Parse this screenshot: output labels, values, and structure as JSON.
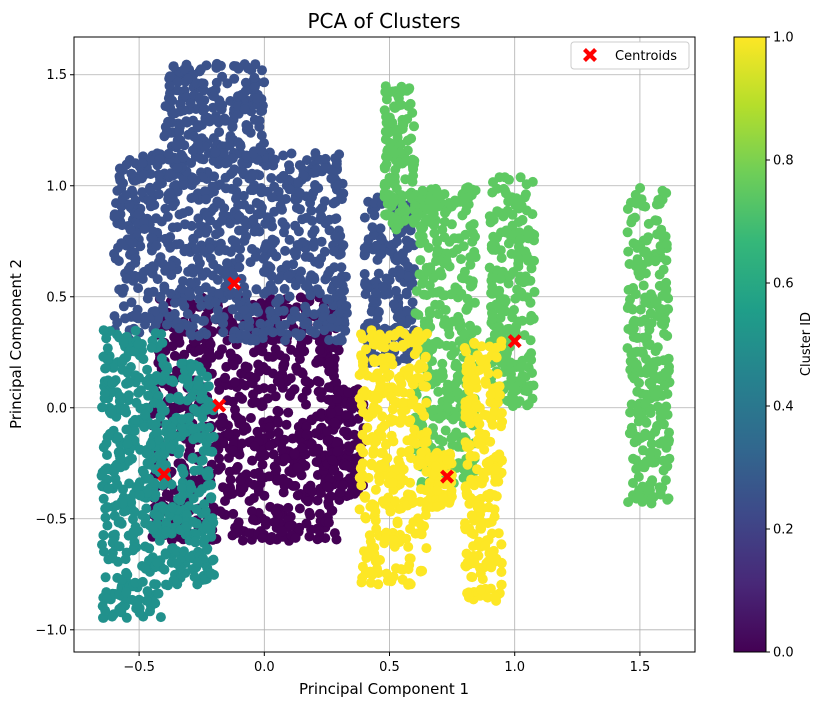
{
  "chart_data": {
    "type": "scatter",
    "title": "PCA of Clusters",
    "xlabel": "Principal Component 1",
    "ylabel": "Principal Component 2",
    "xlim": [
      -0.76,
      1.72
    ],
    "ylim": [
      -1.1,
      1.67
    ],
    "xticks": [
      -0.5,
      0.0,
      0.5,
      1.0,
      1.5
    ],
    "xtick_labels": [
      "−0.5",
      "0.0",
      "0.5",
      "1.0",
      "1.5"
    ],
    "yticks": [
      -1.0,
      -0.5,
      0.0,
      0.5,
      1.0,
      1.5
    ],
    "ytick_labels": [
      "−1.0",
      "−0.5",
      "0.0",
      "0.5",
      "1.0",
      "1.5"
    ],
    "grid": true,
    "legend": {
      "position": "top-right",
      "entries": [
        "Centroids"
      ]
    },
    "colorbar": {
      "label": "Cluster ID",
      "range": [
        0.0,
        1.0
      ],
      "ticks": [
        0.0,
        0.2,
        0.4,
        0.6,
        0.8,
        1.0
      ],
      "tick_labels": [
        "0.0",
        "0.2",
        "0.4",
        "0.6",
        "0.8",
        "1.0"
      ],
      "colormap": [
        "#440154",
        "#482878",
        "#3e4989",
        "#31688e",
        "#26828e",
        "#1f9e89",
        "#35b779",
        "#6ece58",
        "#b5de2b",
        "#fde725"
      ]
    },
    "clusters": [
      {
        "id": 0,
        "color_value": 0.0,
        "color": "#440154",
        "regions": [
          {
            "x": [
              -0.45,
              0.3
            ],
            "y": [
              -0.6,
              0.5
            ]
          },
          {
            "x": [
              0.25,
              0.4
            ],
            "y": [
              -0.4,
              0.1
            ]
          }
        ]
      },
      {
        "id": 1,
        "color_value": 0.25,
        "color": "#3b528b",
        "regions": [
          {
            "x": [
              -0.6,
              0.33
            ],
            "y": [
              0.3,
              1.15
            ]
          },
          {
            "x": [
              -0.4,
              0.0
            ],
            "y": [
              1.1,
              1.55
            ]
          },
          {
            "x": [
              0.4,
              0.6
            ],
            "y": [
              0.2,
              0.95
            ]
          }
        ]
      },
      {
        "id": 2,
        "color_value": 0.5,
        "color": "#21918c",
        "regions": [
          {
            "x": [
              -0.65,
              -0.4
            ],
            "y": [
              -0.95,
              0.35
            ]
          },
          {
            "x": [
              -0.4,
              -0.2
            ],
            "y": [
              -0.8,
              0.2
            ]
          }
        ]
      },
      {
        "id": 3,
        "color_value": 0.75,
        "color": "#5ec962",
        "regions": [
          {
            "x": [
              0.48,
              0.6
            ],
            "y": [
              0.8,
              1.45
            ]
          },
          {
            "x": [
              0.6,
              0.85
            ],
            "y": [
              -0.35,
              1.0
            ]
          },
          {
            "x": [
              0.9,
              1.08
            ],
            "y": [
              0.0,
              1.05
            ]
          },
          {
            "x": [
              1.45,
              1.62
            ],
            "y": [
              -0.45,
              0.99
            ]
          }
        ]
      },
      {
        "id": 4,
        "color_value": 1.0,
        "color": "#fde725",
        "regions": [
          {
            "x": [
              0.38,
              0.65
            ],
            "y": [
              -0.8,
              0.35
            ]
          },
          {
            "x": [
              0.8,
              0.95
            ],
            "y": [
              -0.87,
              0.3
            ]
          },
          {
            "x": [
              0.65,
              0.75
            ],
            "y": [
              -0.45,
              -0.2
            ]
          }
        ]
      }
    ],
    "centroids": {
      "color": "#ff0000",
      "x": [
        -0.12,
        -0.18,
        -0.4,
        0.73,
        1.0
      ],
      "y": [
        0.56,
        0.01,
        -0.3,
        -0.31,
        0.3
      ]
    }
  }
}
